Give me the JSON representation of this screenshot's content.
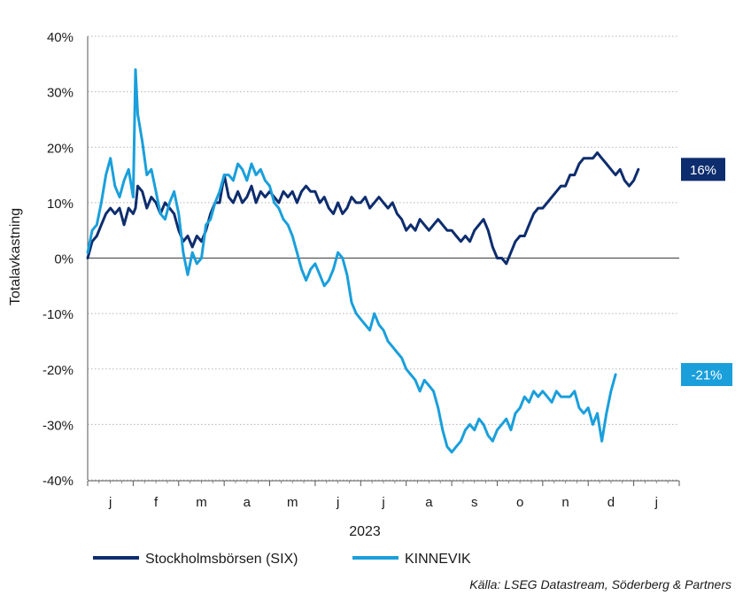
{
  "chart_data": {
    "type": "line",
    "title": "",
    "xlabel": "2023",
    "ylabel": "Totalavkastning",
    "ylim": [
      -40,
      40
    ],
    "y_ticks": [
      40,
      30,
      20,
      10,
      0,
      -10,
      -20,
      -30,
      -40
    ],
    "y_tick_labels": [
      "40%",
      "30%",
      "20%",
      "10%",
      "0%",
      "-10%",
      "-20%",
      "-30%",
      "-40%"
    ],
    "x_tick_labels": [
      "j",
      "f",
      "m",
      "a",
      "m",
      "j",
      "j",
      "a",
      "s",
      "o",
      "n",
      "d",
      "j"
    ],
    "x_range_months": [
      0,
      13
    ],
    "grid": "horizontal dotted",
    "legend_position": "bottom",
    "source": "Källa: LSEG Datastream, Söderberg & Partners",
    "series": [
      {
        "name": "Stockholmsbörsen (SIX)",
        "color": "#0e2d6e",
        "end_label": "16%",
        "points": [
          [
            0.0,
            0
          ],
          [
            0.1,
            3
          ],
          [
            0.2,
            4
          ],
          [
            0.3,
            6
          ],
          [
            0.4,
            8
          ],
          [
            0.5,
            9
          ],
          [
            0.6,
            8
          ],
          [
            0.7,
            9
          ],
          [
            0.8,
            6
          ],
          [
            0.9,
            9
          ],
          [
            1.0,
            8
          ],
          [
            1.05,
            9
          ],
          [
            1.1,
            13
          ],
          [
            1.2,
            12
          ],
          [
            1.3,
            9
          ],
          [
            1.4,
            11
          ],
          [
            1.5,
            10
          ],
          [
            1.6,
            8
          ],
          [
            1.7,
            10
          ],
          [
            1.8,
            9
          ],
          [
            1.9,
            8
          ],
          [
            2.0,
            5
          ],
          [
            2.1,
            3
          ],
          [
            2.2,
            4
          ],
          [
            2.3,
            2
          ],
          [
            2.4,
            4
          ],
          [
            2.5,
            3
          ],
          [
            2.6,
            5
          ],
          [
            2.7,
            8
          ],
          [
            2.8,
            10
          ],
          [
            2.9,
            10
          ],
          [
            3.0,
            15
          ],
          [
            3.1,
            11
          ],
          [
            3.2,
            10
          ],
          [
            3.3,
            12
          ],
          [
            3.4,
            10
          ],
          [
            3.5,
            11
          ],
          [
            3.6,
            13
          ],
          [
            3.7,
            10
          ],
          [
            3.8,
            12
          ],
          [
            3.9,
            11
          ],
          [
            4.0,
            12
          ],
          [
            4.1,
            11
          ],
          [
            4.2,
            10
          ],
          [
            4.3,
            12
          ],
          [
            4.4,
            11
          ],
          [
            4.5,
            12
          ],
          [
            4.6,
            10
          ],
          [
            4.7,
            12
          ],
          [
            4.8,
            13
          ],
          [
            4.9,
            12
          ],
          [
            5.0,
            12
          ],
          [
            5.1,
            10
          ],
          [
            5.2,
            11
          ],
          [
            5.3,
            9
          ],
          [
            5.4,
            8
          ],
          [
            5.5,
            10
          ],
          [
            5.6,
            8
          ],
          [
            5.7,
            9
          ],
          [
            5.8,
            11
          ],
          [
            5.9,
            10
          ],
          [
            6.0,
            10
          ],
          [
            6.1,
            11
          ],
          [
            6.2,
            9
          ],
          [
            6.3,
            10
          ],
          [
            6.4,
            11
          ],
          [
            6.5,
            10
          ],
          [
            6.6,
            9
          ],
          [
            6.7,
            10
          ],
          [
            6.8,
            8
          ],
          [
            6.9,
            7
          ],
          [
            7.0,
            5
          ],
          [
            7.1,
            6
          ],
          [
            7.2,
            5
          ],
          [
            7.3,
            7
          ],
          [
            7.4,
            6
          ],
          [
            7.5,
            5
          ],
          [
            7.6,
            6
          ],
          [
            7.7,
            7
          ],
          [
            7.8,
            6
          ],
          [
            7.9,
            5
          ],
          [
            8.0,
            5
          ],
          [
            8.1,
            4
          ],
          [
            8.2,
            3
          ],
          [
            8.3,
            4
          ],
          [
            8.4,
            3
          ],
          [
            8.5,
            5
          ],
          [
            8.6,
            6
          ],
          [
            8.7,
            7
          ],
          [
            8.8,
            5
          ],
          [
            8.9,
            2
          ],
          [
            9.0,
            0
          ],
          [
            9.1,
            0
          ],
          [
            9.2,
            -1
          ],
          [
            9.3,
            1
          ],
          [
            9.4,
            3
          ],
          [
            9.5,
            4
          ],
          [
            9.6,
            4
          ],
          [
            9.7,
            6
          ],
          [
            9.8,
            8
          ],
          [
            9.9,
            9
          ],
          [
            10.0,
            9
          ],
          [
            10.1,
            10
          ],
          [
            10.2,
            11
          ],
          [
            10.3,
            12
          ],
          [
            10.4,
            13
          ],
          [
            10.5,
            13
          ],
          [
            10.6,
            15
          ],
          [
            10.7,
            15
          ],
          [
            10.8,
            17
          ],
          [
            10.9,
            18
          ],
          [
            11.0,
            18
          ],
          [
            11.1,
            18
          ],
          [
            11.2,
            19
          ],
          [
            11.3,
            18
          ],
          [
            11.4,
            17
          ],
          [
            11.5,
            16
          ],
          [
            11.6,
            15
          ],
          [
            11.7,
            16
          ],
          [
            11.8,
            14
          ],
          [
            11.9,
            13
          ],
          [
            12.0,
            14
          ],
          [
            12.1,
            16
          ]
        ]
      },
      {
        "name": "KINNEVIK",
        "color": "#1a9fdb",
        "end_label": "-21%",
        "points": [
          [
            0.0,
            1
          ],
          [
            0.1,
            5
          ],
          [
            0.2,
            6
          ],
          [
            0.3,
            10
          ],
          [
            0.4,
            15
          ],
          [
            0.5,
            18
          ],
          [
            0.6,
            13
          ],
          [
            0.7,
            11
          ],
          [
            0.8,
            14
          ],
          [
            0.9,
            16
          ],
          [
            1.0,
            11
          ],
          [
            1.05,
            34
          ],
          [
            1.1,
            26
          ],
          [
            1.2,
            21
          ],
          [
            1.3,
            15
          ],
          [
            1.4,
            16
          ],
          [
            1.5,
            12
          ],
          [
            1.6,
            8
          ],
          [
            1.7,
            7
          ],
          [
            1.8,
            10
          ],
          [
            1.9,
            12
          ],
          [
            2.0,
            8
          ],
          [
            2.1,
            1
          ],
          [
            2.2,
            -3
          ],
          [
            2.3,
            1
          ],
          [
            2.4,
            -1
          ],
          [
            2.5,
            0
          ],
          [
            2.6,
            6
          ],
          [
            2.7,
            7
          ],
          [
            2.8,
            10
          ],
          [
            2.9,
            12
          ],
          [
            3.0,
            15
          ],
          [
            3.1,
            15
          ],
          [
            3.2,
            14
          ],
          [
            3.3,
            17
          ],
          [
            3.4,
            16
          ],
          [
            3.5,
            14
          ],
          [
            3.6,
            17
          ],
          [
            3.7,
            15
          ],
          [
            3.8,
            16
          ],
          [
            3.9,
            14
          ],
          [
            4.0,
            13
          ],
          [
            4.1,
            10
          ],
          [
            4.2,
            9
          ],
          [
            4.3,
            7
          ],
          [
            4.4,
            6
          ],
          [
            4.5,
            4
          ],
          [
            4.6,
            1
          ],
          [
            4.7,
            -2
          ],
          [
            4.8,
            -4
          ],
          [
            4.9,
            -2
          ],
          [
            5.0,
            -1
          ],
          [
            5.1,
            -3
          ],
          [
            5.2,
            -5
          ],
          [
            5.3,
            -4
          ],
          [
            5.4,
            -2
          ],
          [
            5.5,
            1
          ],
          [
            5.6,
            0
          ],
          [
            5.7,
            -3
          ],
          [
            5.8,
            -8
          ],
          [
            5.9,
            -10
          ],
          [
            6.0,
            -11
          ],
          [
            6.1,
            -12
          ],
          [
            6.2,
            -13
          ],
          [
            6.3,
            -10
          ],
          [
            6.4,
            -12
          ],
          [
            6.5,
            -13
          ],
          [
            6.6,
            -15
          ],
          [
            6.7,
            -16
          ],
          [
            6.8,
            -17
          ],
          [
            6.9,
            -18
          ],
          [
            7.0,
            -20
          ],
          [
            7.1,
            -21
          ],
          [
            7.2,
            -22
          ],
          [
            7.3,
            -24
          ],
          [
            7.4,
            -22
          ],
          [
            7.5,
            -23
          ],
          [
            7.6,
            -24
          ],
          [
            7.7,
            -27
          ],
          [
            7.8,
            -31
          ],
          [
            7.9,
            -34
          ],
          [
            8.0,
            -35
          ],
          [
            8.1,
            -34
          ],
          [
            8.2,
            -33
          ],
          [
            8.3,
            -31
          ],
          [
            8.4,
            -30
          ],
          [
            8.5,
            -31
          ],
          [
            8.6,
            -29
          ],
          [
            8.7,
            -30
          ],
          [
            8.8,
            -32
          ],
          [
            8.9,
            -33
          ],
          [
            9.0,
            -31
          ],
          [
            9.1,
            -30
          ],
          [
            9.2,
            -29
          ],
          [
            9.3,
            -31
          ],
          [
            9.4,
            -28
          ],
          [
            9.5,
            -27
          ],
          [
            9.6,
            -25
          ],
          [
            9.7,
            -26
          ],
          [
            9.8,
            -24
          ],
          [
            9.9,
            -25
          ],
          [
            10.0,
            -24
          ],
          [
            10.1,
            -25
          ],
          [
            10.2,
            -26
          ],
          [
            10.3,
            -24
          ],
          [
            10.4,
            -25
          ],
          [
            10.5,
            -25
          ],
          [
            10.6,
            -25
          ],
          [
            10.7,
            -24
          ],
          [
            10.8,
            -27
          ],
          [
            10.9,
            -28
          ],
          [
            11.0,
            -27
          ],
          [
            11.1,
            -30
          ],
          [
            11.2,
            -28
          ],
          [
            11.3,
            -33
          ],
          [
            11.4,
            -28
          ],
          [
            11.5,
            -24
          ],
          [
            11.6,
            -21
          ]
        ]
      }
    ]
  }
}
